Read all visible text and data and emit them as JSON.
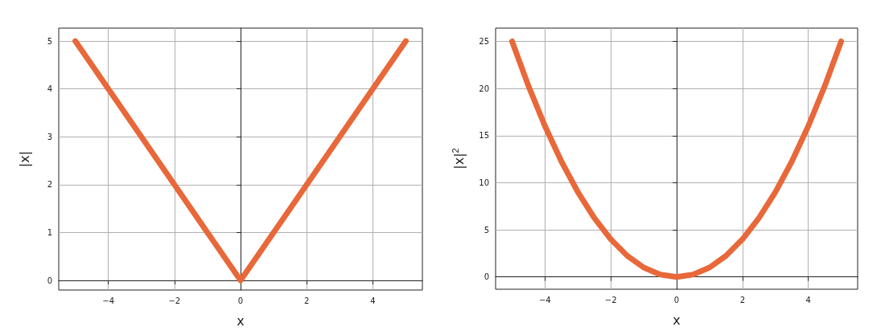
{
  "chart_data": [
    {
      "type": "line",
      "xlabel": "x",
      "ylabel": "|x|",
      "x": [
        -5,
        0,
        5
      ],
      "series": [
        {
          "color": "#e8683a",
          "values": [
            5,
            0,
            5
          ]
        }
      ],
      "xlim": [
        -5.5,
        5.5
      ],
      "xticks": [
        -4,
        -2,
        0,
        2,
        4
      ],
      "ylim": [
        -0.2,
        5.27
      ],
      "yticks": [
        0,
        1,
        2,
        3,
        4,
        5
      ],
      "grid": true,
      "marker": "none",
      "line_style": "solid"
    },
    {
      "type": "line",
      "xlabel": "x",
      "ylabel": "|x|$^{2}$",
      "x": [
        -5,
        -4.5,
        -4,
        -3.5,
        -3,
        -2.5,
        -2,
        -1.5,
        -1,
        -0.5,
        0,
        0.5,
        1,
        1.5,
        2,
        2.5,
        3,
        3.5,
        4,
        4.5,
        5
      ],
      "series": [
        {
          "color": "#e8683a",
          "values": [
            25,
            20.25,
            16,
            12.25,
            9,
            6.25,
            4,
            2.25,
            1,
            0.25,
            0,
            0.25,
            1,
            2.25,
            4,
            6.25,
            9,
            12.25,
            16,
            20.25,
            25
          ]
        }
      ],
      "xlim": [
        -5.5,
        5.5
      ],
      "xticks": [
        -4,
        -2,
        0,
        2,
        4
      ],
      "ylim": [
        -1.3,
        26.4
      ],
      "yticks": [
        0,
        5,
        10,
        15,
        20,
        25
      ],
      "grid": true,
      "marker": "none",
      "line_style": "solid"
    }
  ]
}
